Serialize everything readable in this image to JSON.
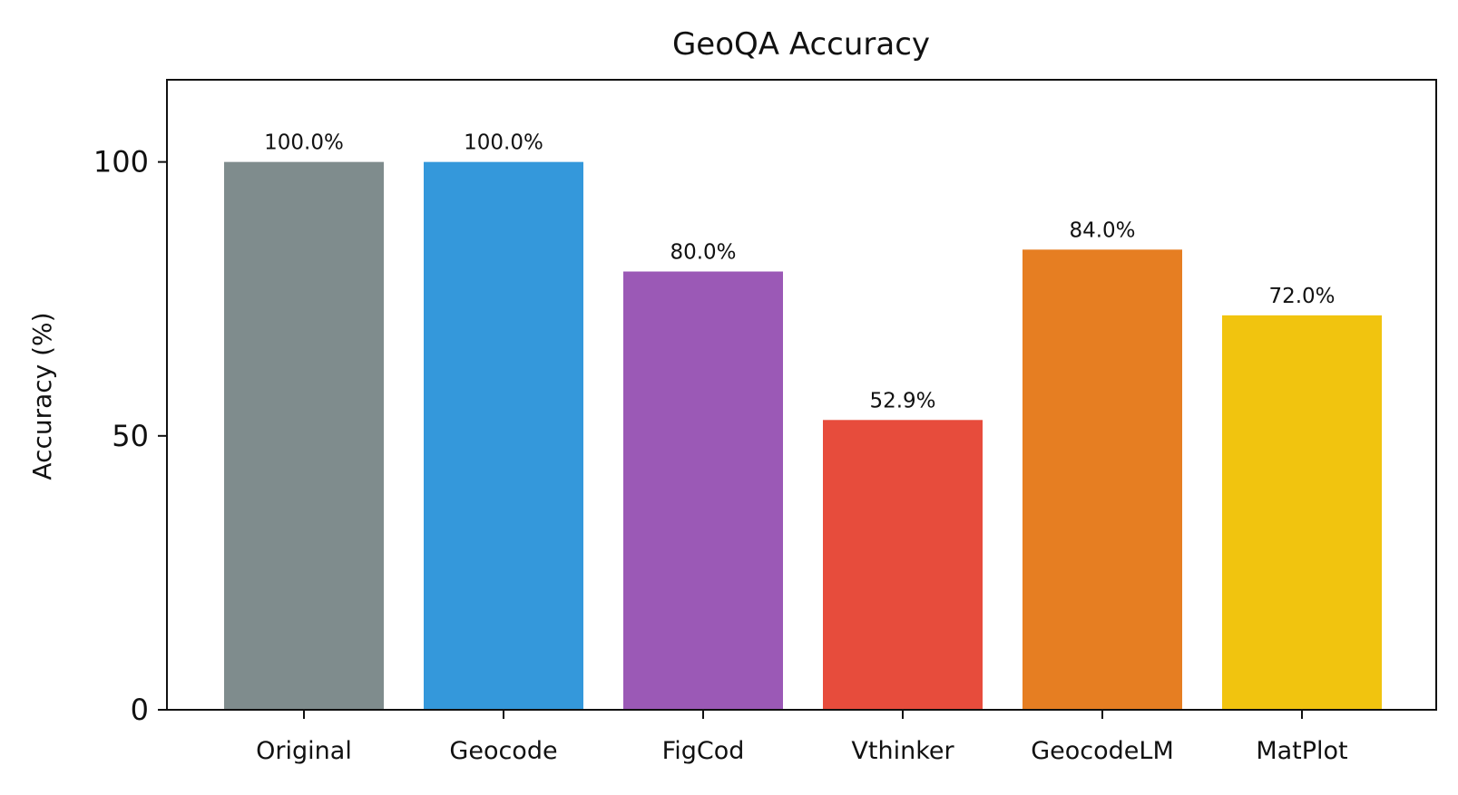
{
  "chart_data": {
    "type": "bar",
    "title": "GeoQA Accuracy",
    "xlabel": "",
    "ylabel": "Accuracy (%)",
    "ylim": [
      0,
      115
    ],
    "yticks": [
      0,
      50,
      100
    ],
    "categories": [
      "Original",
      "Geocode",
      "FigCod",
      "Vthinker",
      "GeocodeLM",
      "MatPlot"
    ],
    "values": [
      100.0,
      100.0,
      80.0,
      52.9,
      84.0,
      72.0
    ],
    "data_labels": [
      "100.0%",
      "100.0%",
      "80.0%",
      "52.9%",
      "84.0%",
      "72.0%"
    ],
    "colors": [
      "#7f8c8d",
      "#3498db",
      "#9b59b6",
      "#e74c3c",
      "#e67e22",
      "#f1c40f"
    ],
    "grid": false,
    "legend": "none"
  }
}
